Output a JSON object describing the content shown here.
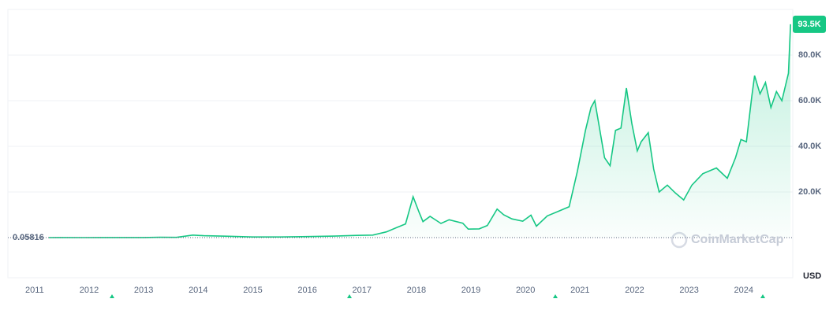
{
  "chart_data": {
    "type": "area",
    "color": "#16c784",
    "x": [
      2011.26,
      2011.45,
      2011.9,
      2012.5,
      2013.0,
      2013.3,
      2013.6,
      2013.9,
      2014.1,
      2014.5,
      2015.0,
      2015.5,
      2015.9,
      2016.5,
      2016.9,
      2017.2,
      2017.45,
      2017.65,
      2017.8,
      2017.94,
      2018.05,
      2018.12,
      2018.25,
      2018.45,
      2018.6,
      2018.85,
      2018.95,
      2019.15,
      2019.3,
      2019.48,
      2019.6,
      2019.75,
      2019.95,
      2020.1,
      2020.2,
      2020.4,
      2020.6,
      2020.8,
      2020.95,
      2021.1,
      2021.2,
      2021.27,
      2021.35,
      2021.45,
      2021.55,
      2021.65,
      2021.75,
      2021.85,
      2021.95,
      2022.05,
      2022.12,
      2022.25,
      2022.35,
      2022.45,
      2022.6,
      2022.75,
      2022.9,
      2023.05,
      2023.25,
      2023.5,
      2023.7,
      2023.85,
      2023.95,
      2024.05,
      2024.15,
      2024.2,
      2024.3,
      2024.4,
      2024.5,
      2024.6,
      2024.7,
      2024.78,
      2024.82,
      2024.86
    ],
    "values": [
      0.06,
      15,
      3,
      7,
      13,
      130,
      100,
      1100,
      800,
      600,
      250,
      250,
      400,
      650,
      950,
      1100,
      2500,
      4500,
      6000,
      17900,
      11000,
      7000,
      9300,
      6200,
      7800,
      6300,
      3700,
      3800,
      5300,
      12500,
      10000,
      8200,
      7200,
      9800,
      5000,
      9500,
      11500,
      13500,
      29000,
      47000,
      57000,
      60000,
      49000,
      35000,
      31500,
      47000,
      48000,
      65500,
      50000,
      38000,
      42000,
      46000,
      30000,
      20000,
      23000,
      19500,
      16500,
      23000,
      28000,
      30500,
      26000,
      35000,
      43000,
      42000,
      62000,
      71000,
      63000,
      68000,
      57000,
      64000,
      60000,
      68000,
      72000,
      93500
    ],
    "xlim": [
      2010.51,
      2024.9
    ],
    "xticks": [
      2011,
      2012,
      2013,
      2014,
      2015,
      2016,
      2017,
      2018,
      2019,
      2020,
      2021,
      2022,
      2023,
      2024
    ],
    "ylim": [
      -17600,
      100000
    ],
    "yticks": [
      {
        "value": 20000,
        "label": "20.0K"
      },
      {
        "value": 40000,
        "label": "40.0K"
      },
      {
        "value": 60000,
        "label": "60.0K"
      },
      {
        "value": 80000,
        "label": "80.0K"
      }
    ],
    "grid": true,
    "baseline": {
      "value": 0.05816,
      "label": "0.05816"
    },
    "current": {
      "value": 93500,
      "label": "93.5K"
    },
    "currency": "USD",
    "watermark": "CoinMarketCap"
  }
}
